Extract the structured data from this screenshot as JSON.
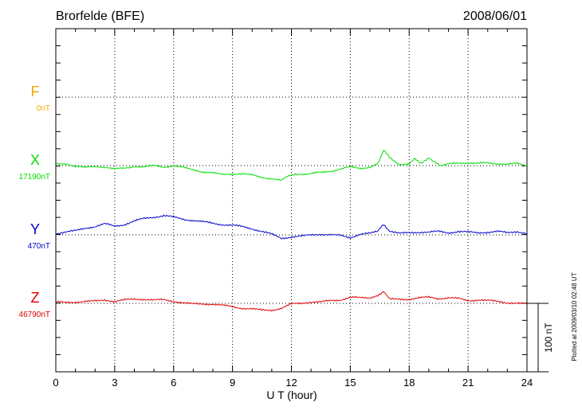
{
  "chart_data": {
    "type": "line",
    "title": "Brorfelde (BFE)",
    "date": "2008/06/01",
    "xlabel": "U T (hour)",
    "xlim": [
      0,
      24
    ],
    "x_ticks": [
      "0",
      "3",
      "6",
      "9",
      "12",
      "15",
      "18",
      "21",
      "24"
    ],
    "scale_label": "100 nT",
    "plotted_note": "Plotted at 2009/03/10 02:48 UT",
    "grid": true,
    "series": [
      {
        "name": "F",
        "baseline_label": "0nT",
        "color": "#f5a800",
        "points": []
      },
      {
        "name": "X",
        "baseline_label": "17190nT",
        "color": "#00dd00",
        "points": [
          [
            0,
            2
          ],
          [
            0.5,
            3
          ],
          [
            1,
            -1
          ],
          [
            1.5,
            -3
          ],
          [
            2,
            -1
          ],
          [
            2.5,
            -2
          ],
          [
            3,
            -5
          ],
          [
            3.5,
            -4
          ],
          [
            4,
            -1
          ],
          [
            4.5,
            -2
          ],
          [
            5,
            0
          ],
          [
            5.5,
            -2
          ],
          [
            6,
            0
          ],
          [
            6.5,
            -3
          ],
          [
            7,
            -6
          ],
          [
            7.5,
            -9
          ],
          [
            8,
            -11
          ],
          [
            8.5,
            -13
          ],
          [
            9,
            -12
          ],
          [
            9.5,
            -12
          ],
          [
            10,
            -14
          ],
          [
            10.5,
            -17
          ],
          [
            11,
            -19
          ],
          [
            11.5,
            -22
          ],
          [
            11.8,
            -15
          ],
          [
            12.2,
            -13
          ],
          [
            12.7,
            -12
          ],
          [
            13.5,
            -10
          ],
          [
            14,
            -8
          ],
          [
            14.5,
            -5
          ],
          [
            15,
            -2
          ],
          [
            15.5,
            -4
          ],
          [
            16,
            -2
          ],
          [
            16.4,
            4
          ],
          [
            16.7,
            22
          ],
          [
            17,
            12
          ],
          [
            17.5,
            2
          ],
          [
            18,
            2
          ],
          [
            18.3,
            10
          ],
          [
            18.6,
            4
          ],
          [
            19,
            12
          ],
          [
            19.3,
            5
          ],
          [
            19.6,
            -1
          ],
          [
            20,
            2
          ],
          [
            20.5,
            4
          ],
          [
            21,
            4
          ],
          [
            21.5,
            3
          ],
          [
            22,
            4
          ],
          [
            22.5,
            3
          ],
          [
            23,
            2
          ],
          [
            23.5,
            3
          ],
          [
            24,
            0
          ]
        ]
      },
      {
        "name": "Y",
        "baseline_label": "470nT",
        "color": "#0000cc",
        "points": [
          [
            0,
            2
          ],
          [
            0.5,
            4
          ],
          [
            1,
            6
          ],
          [
            1.5,
            10
          ],
          [
            2,
            12
          ],
          [
            2.5,
            16
          ],
          [
            3,
            13
          ],
          [
            3.5,
            15
          ],
          [
            4,
            20
          ],
          [
            4.5,
            24
          ],
          [
            5,
            26
          ],
          [
            5.5,
            28
          ],
          [
            6,
            26
          ],
          [
            6.5,
            23
          ],
          [
            7,
            21
          ],
          [
            7.5,
            19
          ],
          [
            8,
            17
          ],
          [
            8.5,
            15
          ],
          [
            9,
            14
          ],
          [
            9.5,
            12
          ],
          [
            10,
            9
          ],
          [
            10.5,
            5
          ],
          [
            11,
            1
          ],
          [
            11.5,
            -5
          ],
          [
            12,
            -3
          ],
          [
            12.5,
            -2
          ],
          [
            13,
            0
          ],
          [
            13.5,
            1
          ],
          [
            14,
            0
          ],
          [
            14.5,
            -1
          ],
          [
            15,
            -4
          ],
          [
            15.5,
            1
          ],
          [
            16,
            2
          ],
          [
            16.4,
            5
          ],
          [
            16.7,
            15
          ],
          [
            17,
            6
          ],
          [
            17.5,
            2
          ],
          [
            18,
            3
          ],
          [
            18.5,
            4
          ],
          [
            19,
            4
          ],
          [
            19.5,
            5
          ],
          [
            20,
            3
          ],
          [
            20.5,
            5
          ],
          [
            21,
            4
          ],
          [
            21.5,
            3
          ],
          [
            22,
            4
          ],
          [
            22.5,
            5
          ],
          [
            23,
            3
          ],
          [
            23.5,
            5
          ],
          [
            24,
            2
          ]
        ]
      },
      {
        "name": "Z",
        "baseline_label": "46790nT",
        "color": "#dd0000",
        "points": [
          [
            0,
            2
          ],
          [
            0.5,
            1
          ],
          [
            1,
            2
          ],
          [
            1.5,
            3
          ],
          [
            2,
            3
          ],
          [
            2.5,
            5
          ],
          [
            3,
            3
          ],
          [
            3.5,
            5
          ],
          [
            4,
            6
          ],
          [
            4.5,
            6
          ],
          [
            5,
            5
          ],
          [
            5.5,
            5
          ],
          [
            6,
            3
          ],
          [
            6.5,
            1
          ],
          [
            7,
            -1
          ],
          [
            7.5,
            -1
          ],
          [
            8,
            -1
          ],
          [
            8.5,
            -3
          ],
          [
            9,
            -5
          ],
          [
            9.5,
            -7
          ],
          [
            10,
            -8
          ],
          [
            10.5,
            -10
          ],
          [
            11,
            -10
          ],
          [
            11.5,
            -7
          ],
          [
            12,
            -1
          ],
          [
            12.5,
            0
          ],
          [
            13,
            2
          ],
          [
            13.5,
            2
          ],
          [
            14,
            4
          ],
          [
            14.5,
            5
          ],
          [
            15,
            9
          ],
          [
            15.5,
            8
          ],
          [
            16,
            8
          ],
          [
            16.4,
            11
          ],
          [
            16.7,
            18
          ],
          [
            17,
            6
          ],
          [
            17.5,
            6
          ],
          [
            18,
            6
          ],
          [
            18.5,
            8
          ],
          [
            19,
            9
          ],
          [
            19.5,
            7
          ],
          [
            20,
            8
          ],
          [
            20.5,
            7
          ],
          [
            21,
            4
          ],
          [
            21.5,
            5
          ],
          [
            22,
            4
          ],
          [
            22.5,
            3
          ],
          [
            23,
            1
          ],
          [
            23.5,
            0
          ],
          [
            24,
            -1
          ]
        ]
      }
    ]
  }
}
